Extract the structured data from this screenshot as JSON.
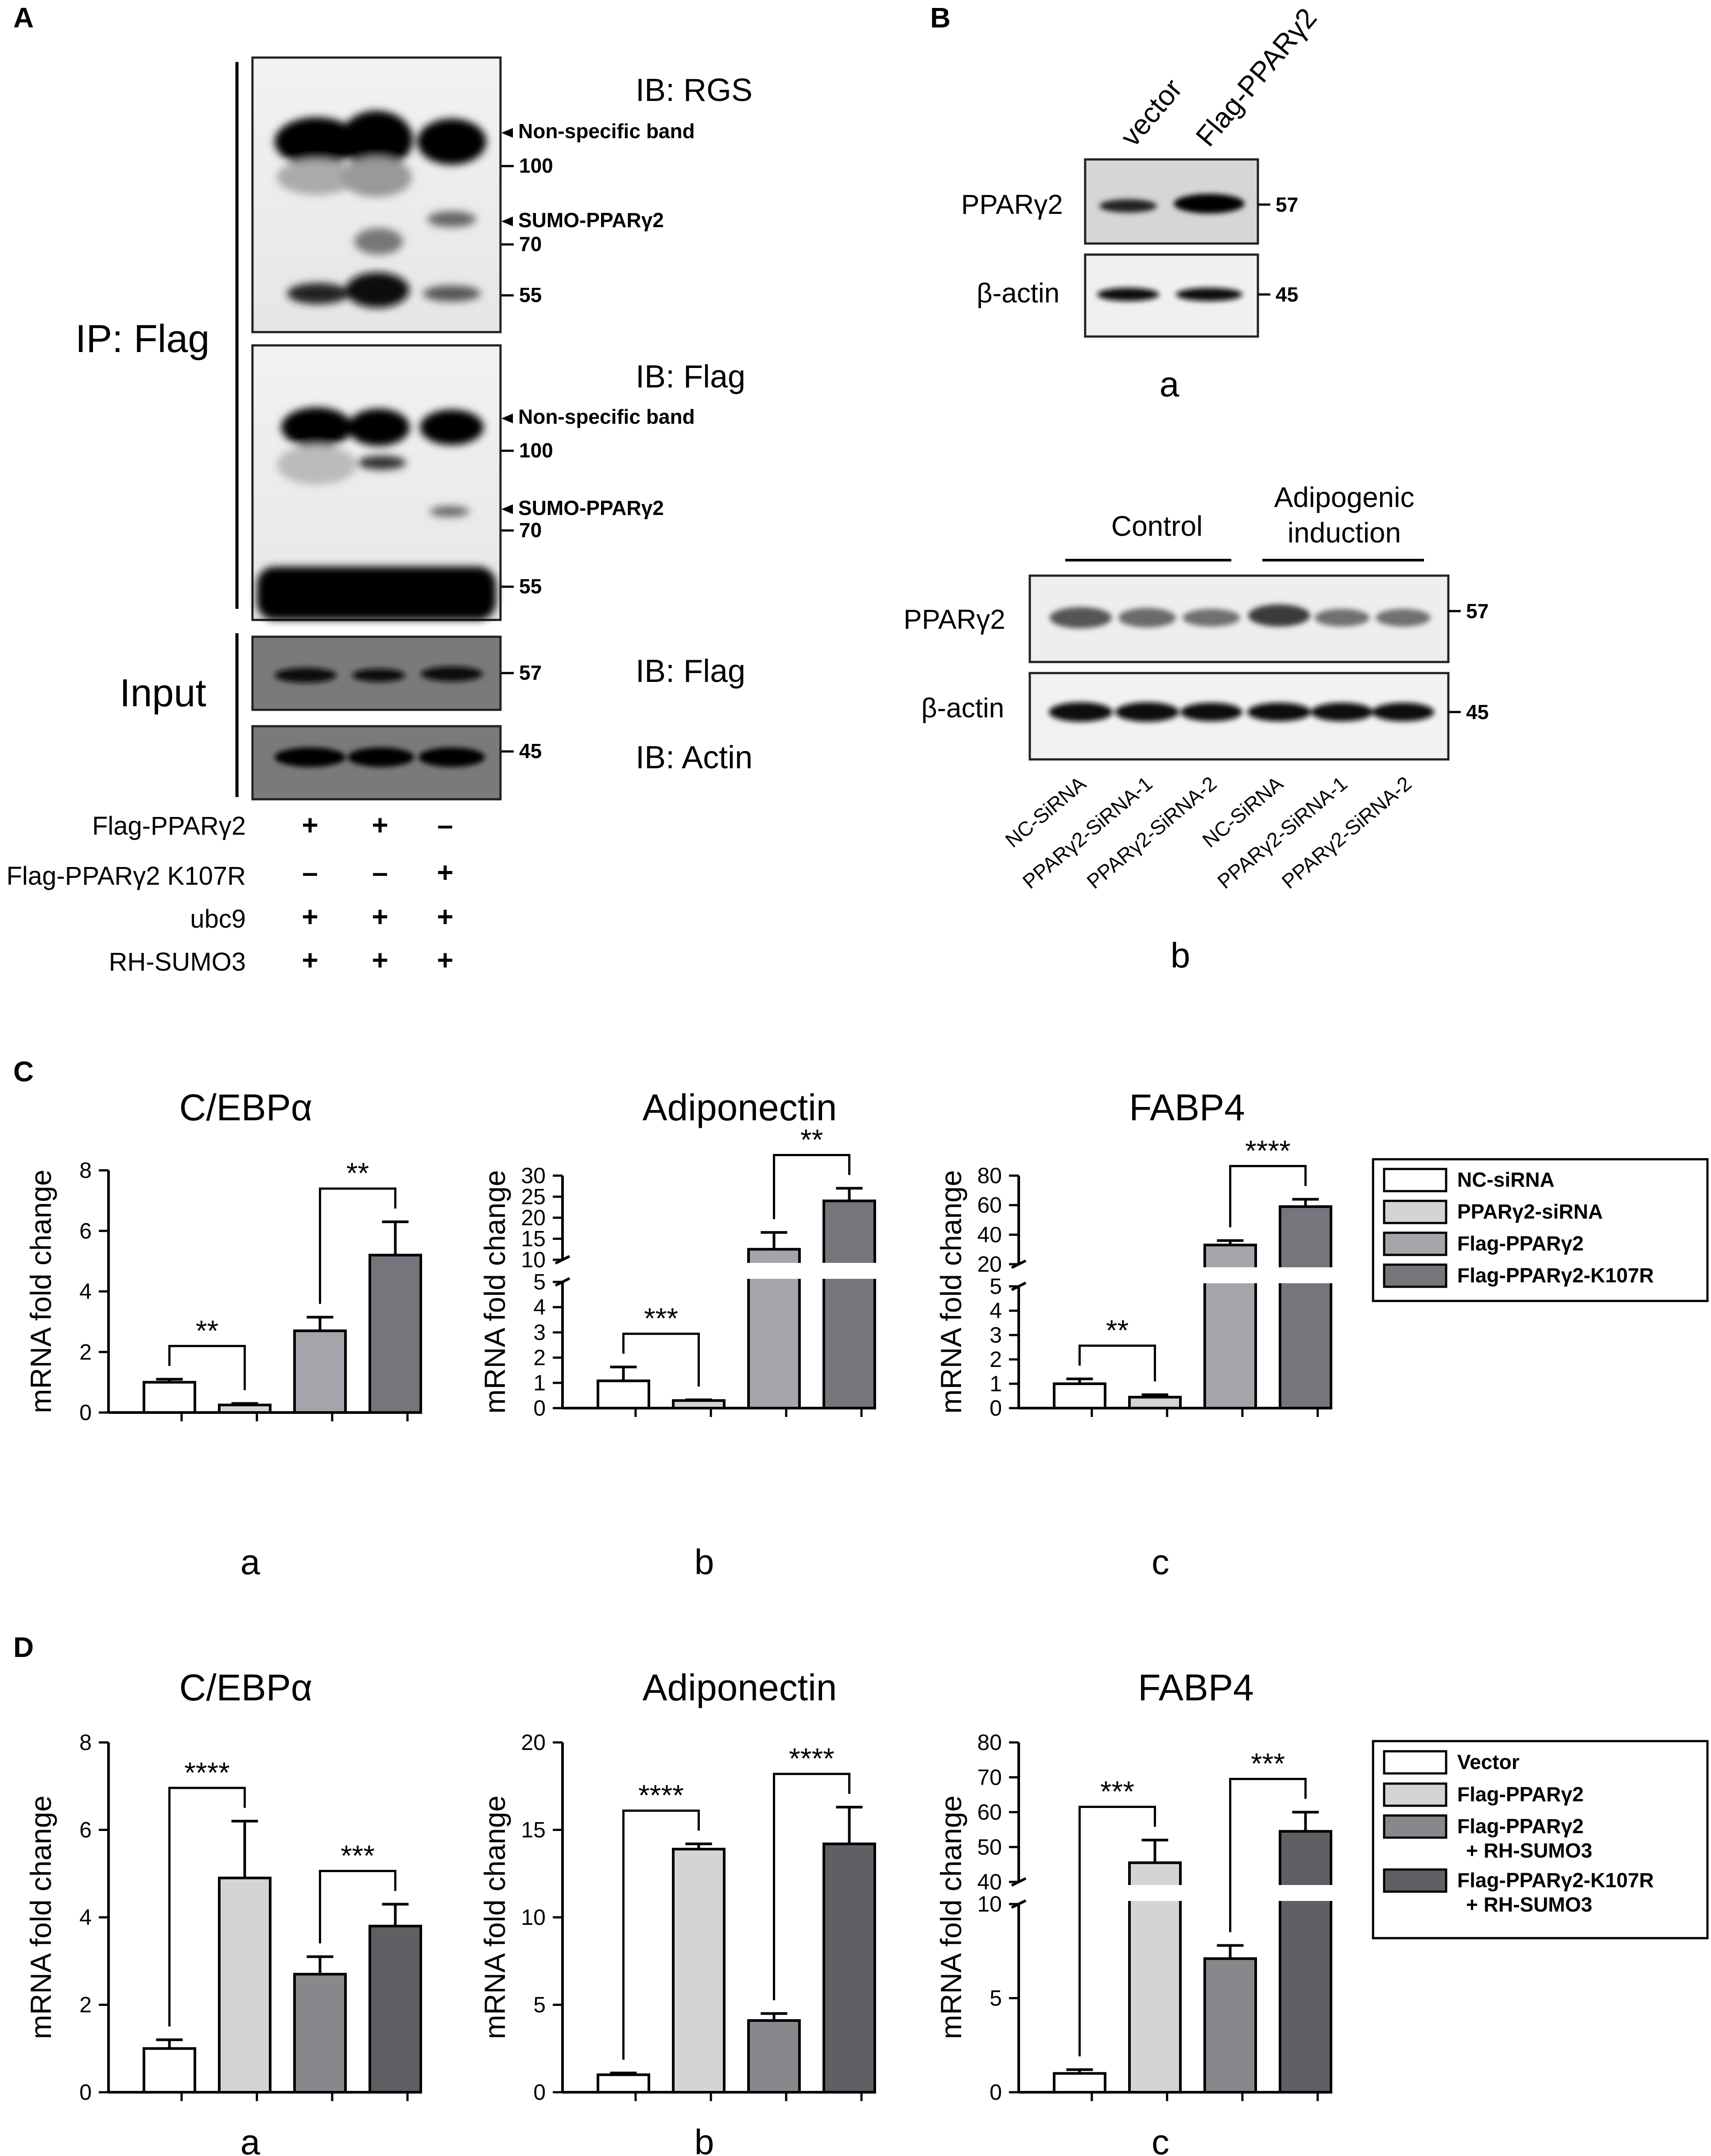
{
  "panel_labels": {
    "A": "A",
    "B": "B",
    "C": "C",
    "D": "D"
  },
  "panel_a": {
    "ip_label": "IP: Flag",
    "input_label": "Input",
    "blots": [
      {
        "ib": "IB: RGS",
        "annotations": [
          {
            "kind": "arrow",
            "text": "Non-specific band"
          },
          {
            "kind": "marker",
            "text": "100"
          },
          {
            "kind": "arrow",
            "text": "SUMO-PPARγ2"
          },
          {
            "kind": "marker",
            "text": "70"
          },
          {
            "kind": "marker",
            "text": "55"
          }
        ]
      },
      {
        "ib": "IB: Flag",
        "annotations": [
          {
            "kind": "arrow",
            "text": "Non-specific band"
          },
          {
            "kind": "marker",
            "text": "100"
          },
          {
            "kind": "arrow",
            "text": "SUMO-PPARγ2"
          },
          {
            "kind": "marker",
            "text": "70"
          },
          {
            "kind": "marker",
            "text": "55"
          }
        ]
      },
      {
        "ib": "IB: Flag",
        "annotations": [
          {
            "kind": "marker",
            "text": "57"
          }
        ]
      },
      {
        "ib": "IB: Actin",
        "annotations": [
          {
            "kind": "marker",
            "text": "45"
          }
        ]
      }
    ],
    "conditions": [
      {
        "label": "Flag-PPARγ2",
        "values": [
          "+",
          "+",
          "–"
        ]
      },
      {
        "label": "Flag-PPARγ2 K107R",
        "values": [
          "–",
          "–",
          "+"
        ]
      },
      {
        "label": "ubc9",
        "values": [
          "+",
          "+",
          "+"
        ]
      },
      {
        "label": "RH-SUMO3",
        "values": [
          "+",
          "+",
          "+"
        ]
      }
    ]
  },
  "panel_b": {
    "a": {
      "sublabel": "a",
      "lanes": [
        "vector",
        "Flag-PPARγ2"
      ],
      "rows": [
        {
          "label": "PPARγ2",
          "marker": "57"
        },
        {
          "label": "β-actin",
          "marker": "45"
        }
      ]
    },
    "b": {
      "sublabel": "b",
      "group_control": "Control",
      "group_adipo_1": "Adipogenic",
      "group_adipo_2": "induction",
      "rows": [
        {
          "label": "PPARγ2",
          "marker": "57"
        },
        {
          "label": "β-actin",
          "marker": "45"
        }
      ],
      "lanes": [
        "NC-SiRNA",
        "PPARγ2-SiRNA-1",
        "PPARγ2-SiRNA-2",
        "NC-SiRNA",
        "PPARγ2-SiRNA-1",
        "PPARγ2-SiRNA-2"
      ]
    }
  },
  "legend_c": [
    "NC-siRNA",
    "PPARγ2-siRNA",
    "Flag-PPARγ2",
    "Flag-PPARγ2-K107R"
  ],
  "legend_d": [
    [
      "Vector"
    ],
    [
      "Flag-PPARγ2"
    ],
    [
      "Flag-PPARγ2",
      "+ RH-SUMO3"
    ],
    [
      "Flag-PPARγ2-K107R",
      "+ RH-SUMO3"
    ]
  ],
  "colors": {
    "c": [
      "#ffffff",
      "#d4d4d6",
      "#a4a4aa",
      "#75757b"
    ],
    "d": [
      "#ffffff",
      "#d4d4d6",
      "#87878c",
      "#5f5f64"
    ]
  },
  "chart_data": [
    {
      "type": "bar",
      "panel": "C",
      "sublabel": "a",
      "title": "C/EBPα",
      "ylabel": "mRNA fold change",
      "ylim": [
        0,
        8
      ],
      "yticks": [
        "0",
        "2",
        "4",
        "6",
        "8"
      ],
      "series": [
        {
          "name": "NC-siRNA",
          "value": 1.0,
          "error": 0.1
        },
        {
          "name": "PPARγ2-siRNA",
          "value": 0.25,
          "error": 0.05
        },
        {
          "name": "Flag-PPARγ2",
          "value": 2.7,
          "error": 0.45
        },
        {
          "name": "Flag-PPARγ2-K107R",
          "value": 5.2,
          "error": 1.1
        }
      ],
      "significance": [
        {
          "pair": [
            0,
            1
          ],
          "label": "**"
        },
        {
          "pair": [
            2,
            3
          ],
          "label": "**"
        }
      ]
    },
    {
      "type": "bar",
      "panel": "C",
      "sublabel": "b",
      "title": "Adiponectin",
      "ylabel": "mRNA fold change",
      "ylim": [
        0,
        30
      ],
      "broken_axis": {
        "lower": [
          0,
          5
        ],
        "upper": [
          10,
          30
        ]
      },
      "yticks_lower": [
        "0",
        "1",
        "2",
        "3",
        "4",
        "5"
      ],
      "yticks_upper": [
        "10",
        "15",
        "20",
        "25",
        "30"
      ],
      "series": [
        {
          "name": "NC-siRNA",
          "value": 1.08,
          "error": 0.55
        },
        {
          "name": "PPARγ2-siRNA",
          "value": 0.3,
          "error": 0.03
        },
        {
          "name": "Flag-PPARγ2",
          "value": 12.5,
          "error": 4.0
        },
        {
          "name": "Flag-PPARγ2-K107R",
          "value": 24.0,
          "error": 3.0
        }
      ],
      "significance": [
        {
          "pair": [
            0,
            1
          ],
          "label": "***"
        },
        {
          "pair": [
            2,
            3
          ],
          "label": "**"
        }
      ]
    },
    {
      "type": "bar",
      "panel": "C",
      "sublabel": "c",
      "title": "FABP4",
      "ylabel": "mRNA fold change",
      "ylim": [
        0,
        80
      ],
      "broken_axis": {
        "lower": [
          0,
          5
        ],
        "upper": [
          20,
          80
        ]
      },
      "yticks_lower": [
        "0",
        "1",
        "2",
        "3",
        "4",
        "5"
      ],
      "yticks_upper": [
        "20",
        "40",
        "60",
        "80"
      ],
      "series": [
        {
          "name": "NC-siRNA",
          "value": 1.0,
          "error": 0.2
        },
        {
          "name": "PPARγ2-siRNA",
          "value": 0.45,
          "error": 0.1
        },
        {
          "name": "Flag-PPARγ2",
          "value": 33.0,
          "error": 3.0
        },
        {
          "name": "Flag-PPARγ2-K107R",
          "value": 59.0,
          "error": 5.0
        }
      ],
      "significance": [
        {
          "pair": [
            0,
            1
          ],
          "label": "**"
        },
        {
          "pair": [
            2,
            3
          ],
          "label": "****"
        }
      ]
    },
    {
      "type": "bar",
      "panel": "D",
      "sublabel": "a",
      "title": "C/EBPα",
      "ylabel": "mRNA fold change",
      "ylim": [
        0,
        8
      ],
      "yticks": [
        "0",
        "2",
        "4",
        "6",
        "8"
      ],
      "series": [
        {
          "name": "Vector",
          "value": 1.0,
          "error": 0.2
        },
        {
          "name": "Flag-PPARγ2",
          "value": 4.9,
          "error": 1.3
        },
        {
          "name": "Flag-PPARγ2 + RH-SUMO3",
          "value": 2.7,
          "error": 0.4
        },
        {
          "name": "Flag-PPARγ2-K107R + RH-SUMO3",
          "value": 3.8,
          "error": 0.5
        }
      ],
      "significance": [
        {
          "pair": [
            0,
            1
          ],
          "label": "****"
        },
        {
          "pair": [
            2,
            3
          ],
          "label": "***"
        }
      ]
    },
    {
      "type": "bar",
      "panel": "D",
      "sublabel": "b",
      "title": "Adiponectin",
      "ylabel": "mRNA fold change",
      "ylim": [
        0,
        20
      ],
      "yticks": [
        "0",
        "5",
        "10",
        "15",
        "20"
      ],
      "series": [
        {
          "name": "Vector",
          "value": 1.0,
          "error": 0.1
        },
        {
          "name": "Flag-PPARγ2",
          "value": 13.9,
          "error": 0.3
        },
        {
          "name": "Flag-PPARγ2 + RH-SUMO3",
          "value": 4.1,
          "error": 0.4
        },
        {
          "name": "Flag-PPARγ2-K107R + RH-SUMO3",
          "value": 14.2,
          "error": 2.1
        }
      ],
      "significance": [
        {
          "pair": [
            0,
            1
          ],
          "label": "****"
        },
        {
          "pair": [
            2,
            3
          ],
          "label": "****"
        }
      ]
    },
    {
      "type": "bar",
      "panel": "D",
      "sublabel": "c",
      "title": "FABP4",
      "ylabel": "mRNA fold change",
      "ylim": [
        0,
        80
      ],
      "broken_axis": {
        "lower": [
          0,
          10
        ],
        "upper": [
          40,
          80
        ]
      },
      "yticks_lower": [
        "0",
        "5",
        "10"
      ],
      "yticks_upper": [
        "40",
        "50",
        "60",
        "70",
        "80"
      ],
      "series": [
        {
          "name": "Vector",
          "value": 1.0,
          "error": 0.2
        },
        {
          "name": "Flag-PPARγ2",
          "value": 45.5,
          "error": 6.5
        },
        {
          "name": "Flag-PPARγ2 + RH-SUMO3",
          "value": 7.1,
          "error": 0.7
        },
        {
          "name": "Flag-PPARγ2-K107R + RH-SUMO3",
          "value": 54.5,
          "error": 5.5
        }
      ],
      "significance": [
        {
          "pair": [
            0,
            1
          ],
          "label": "***"
        },
        {
          "pair": [
            2,
            3
          ],
          "label": "***"
        }
      ]
    }
  ]
}
